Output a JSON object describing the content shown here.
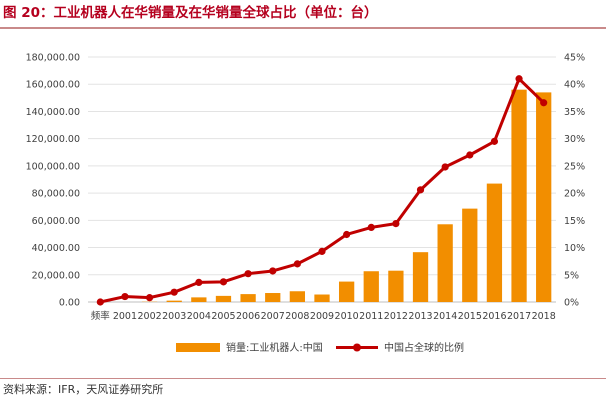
{
  "title": "图 20：工业机器人在华销量及在华销量全球占比（单位：台）",
  "source": "资料来源：IFR，天风证券研究所",
  "colors": {
    "bar": "#f28e00",
    "line": "#c00000",
    "accent": "#b5001e"
  },
  "chart_data": {
    "type": "bar",
    "title": "图 20：工业机器人在华销量及在华销量全球占比（单位：台）",
    "categories": [
      "频率",
      "2001",
      "2002",
      "2003",
      "2004",
      "2005",
      "2006",
      "2007",
      "2008",
      "2009",
      "2010",
      "2011",
      "2012",
      "2013",
      "2014",
      "2015",
      "2016",
      "2017",
      "2018"
    ],
    "y_ticks": [
      "0.00",
      "20,000.00",
      "40,000.00",
      "60,000.00",
      "80,000.00",
      "100,000.00",
      "120,000.00",
      "140,000.00",
      "160,000.00",
      "180,000.00"
    ],
    "y2_ticks": [
      "0%",
      "5%",
      "10%",
      "15%",
      "20%",
      "25%",
      "30%",
      "35%",
      "40%",
      "45%"
    ],
    "ylim": [
      0,
      180000
    ],
    "y2lim": [
      0,
      0.45
    ],
    "series": [
      {
        "name": "销量:工业机器人:中国",
        "type": "bar",
        "axis": "left",
        "values": [
          0,
          0,
          200,
          1000,
          3400,
          4500,
          5800,
          6600,
          7900,
          5500,
          15000,
          22600,
          23000,
          36600,
          57100,
          68600,
          87000,
          156000,
          154000
        ]
      },
      {
        "name": "中国占全球的比例",
        "type": "line",
        "axis": "right",
        "values": [
          0.0,
          0.01,
          0.008,
          0.018,
          0.036,
          0.037,
          0.052,
          0.057,
          0.07,
          0.093,
          0.124,
          0.137,
          0.144,
          0.206,
          0.248,
          0.27,
          0.295,
          0.41,
          0.366
        ]
      }
    ],
    "grid": true,
    "legend": "bottom"
  }
}
